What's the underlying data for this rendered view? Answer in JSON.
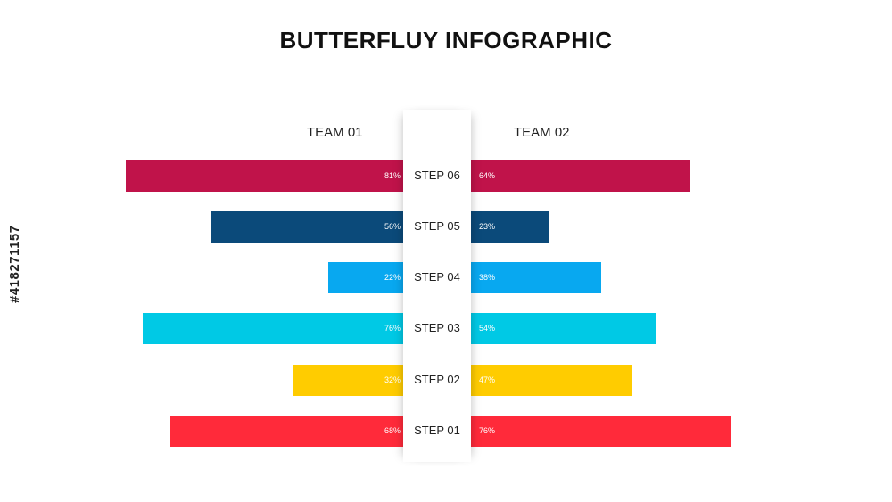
{
  "title": "BUTTERFLUY INFOGRAPHIC",
  "watermark": "#418271157",
  "chart_data": {
    "type": "bar",
    "orientation": "butterfly",
    "title": "BUTTERFLUY INFOGRAPHIC",
    "categories": [
      "STEP 06",
      "STEP 05",
      "STEP 04",
      "STEP 03",
      "STEP 02",
      "STEP 01"
    ],
    "series": [
      {
        "name": "TEAM 01",
        "side": "left",
        "values": [
          81,
          56,
          22,
          76,
          32,
          68
        ],
        "labels": [
          "81%",
          "56%",
          "22%",
          "76%",
          "32%",
          "68%"
        ]
      },
      {
        "name": "TEAM 02",
        "side": "right",
        "values": [
          64,
          23,
          38,
          54,
          47,
          76
        ],
        "labels": [
          "64%",
          "23%",
          "38%",
          "54%",
          "47%",
          "76%"
        ]
      }
    ],
    "colors": [
      "#c0134a",
      "#0b4a7a",
      "#08a8f0",
      "#00c9e5",
      "#ffcc00",
      "#ff2a3a"
    ],
    "unit": "%",
    "ylim": [
      0,
      100
    ],
    "legend": "none"
  }
}
